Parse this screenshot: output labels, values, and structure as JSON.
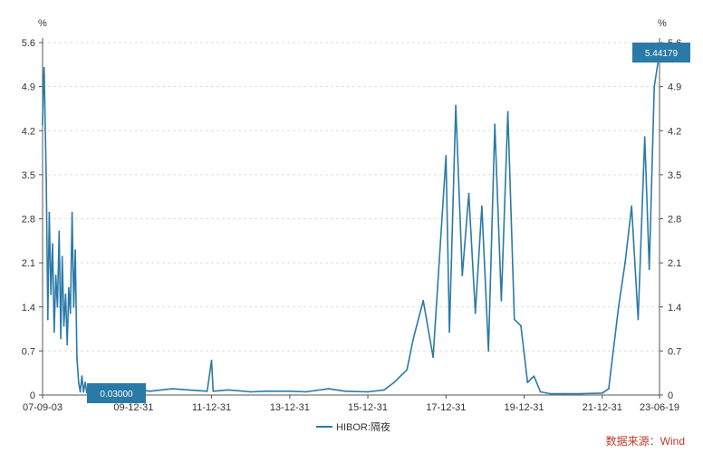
{
  "chart_data": {
    "type": "line",
    "unit_left": "%",
    "unit_right": "%",
    "y_ticks": [
      "0",
      "0.7",
      "1.4",
      "2.1",
      "2.8",
      "3.5",
      "4.2",
      "4.9",
      "5.6"
    ],
    "x_ticks": [
      "07-09-03",
      "09-12-31",
      "11-12-31",
      "13-12-31",
      "15-12-31",
      "17-12-31",
      "19-12-31",
      "21-12-31",
      "23-06-19"
    ],
    "ylim": [
      0,
      5.6
    ],
    "grid": true,
    "line_color": "#2a7aa8",
    "series": [
      {
        "name": "HIBOR:隔夜",
        "x": [
          "2007-09-03",
          "2007-09-10",
          "2007-09-17",
          "2007-09-24",
          "2007-10-08",
          "2007-10-22",
          "2007-11-05",
          "2007-11-20",
          "2007-12-05",
          "2007-12-20",
          "2008-01-05",
          "2008-01-20",
          "2008-02-05",
          "2008-02-20",
          "2008-03-05",
          "2008-03-20",
          "2008-04-05",
          "2008-04-20",
          "2008-05-05",
          "2008-05-20",
          "2008-06-05",
          "2008-06-20",
          "2008-07-05",
          "2008-07-20",
          "2008-08-05",
          "2008-08-20",
          "2008-09-05",
          "2008-09-20",
          "2008-10-05",
          "2008-10-20",
          "2008-11-05",
          "2008-11-20",
          "2008-12-05",
          "2008-12-20",
          "2009-01-05",
          "2009-03-01",
          "2009-06-01",
          "2009-09-01",
          "2009-12-31",
          "2010-06-01",
          "2010-12-31",
          "2011-06-01",
          "2011-11-20",
          "2011-12-31",
          "2012-01-15",
          "2012-06-01",
          "2012-12-31",
          "2013-06-01",
          "2013-12-31",
          "2014-06-01",
          "2014-12-31",
          "2015-06-01",
          "2015-12-31",
          "2016-06-01",
          "2016-09-01",
          "2016-12-31",
          "2017-03-01",
          "2017-06-01",
          "2017-09-01",
          "2017-12-31",
          "2018-02-01",
          "2018-04-01",
          "2018-06-01",
          "2018-08-01",
          "2018-10-01",
          "2018-12-01",
          "2019-02-01",
          "2019-04-01",
          "2019-06-01",
          "2019-08-01",
          "2019-10-01",
          "2019-12-01",
          "2020-02-01",
          "2020-04-01",
          "2020-06-01",
          "2020-09-01",
          "2020-12-31",
          "2021-06-01",
          "2021-12-31",
          "2022-03-01",
          "2022-06-01",
          "2022-08-01",
          "2022-10-01",
          "2022-12-01",
          "2023-02-01",
          "2023-03-15",
          "2023-05-01",
          "2023-06-19"
        ],
        "values": [
          4.3,
          4.9,
          5.2,
          4.6,
          3.4,
          1.2,
          2.9,
          1.6,
          2.4,
          1.0,
          1.9,
          1.4,
          2.6,
          0.9,
          2.2,
          1.1,
          1.6,
          0.8,
          1.7,
          1.3,
          2.9,
          1.4,
          2.3,
          0.6,
          0.2,
          0.05,
          0.3,
          0.05,
          0.2,
          0.04,
          0.1,
          0.04,
          0.1,
          0.03,
          0.05,
          0.05,
          0.04,
          0.03,
          0.1,
          0.06,
          0.1,
          0.08,
          0.06,
          0.55,
          0.06,
          0.08,
          0.05,
          0.06,
          0.06,
          0.05,
          0.1,
          0.06,
          0.05,
          0.08,
          0.2,
          0.4,
          0.9,
          1.5,
          0.6,
          3.8,
          1.0,
          4.6,
          1.9,
          3.2,
          1.3,
          3.0,
          0.7,
          4.3,
          1.5,
          4.5,
          1.2,
          1.1,
          0.2,
          0.3,
          0.05,
          0.02,
          0.02,
          0.02,
          0.03,
          0.1,
          1.4,
          2.1,
          3.0,
          1.2,
          4.1,
          2.0,
          4.9,
          5.44179
        ]
      }
    ],
    "callout_left": "0.03000",
    "callout_right": "5.44179",
    "legend": "HIBOR:隔夜"
  },
  "source": "数据来源：Wind"
}
